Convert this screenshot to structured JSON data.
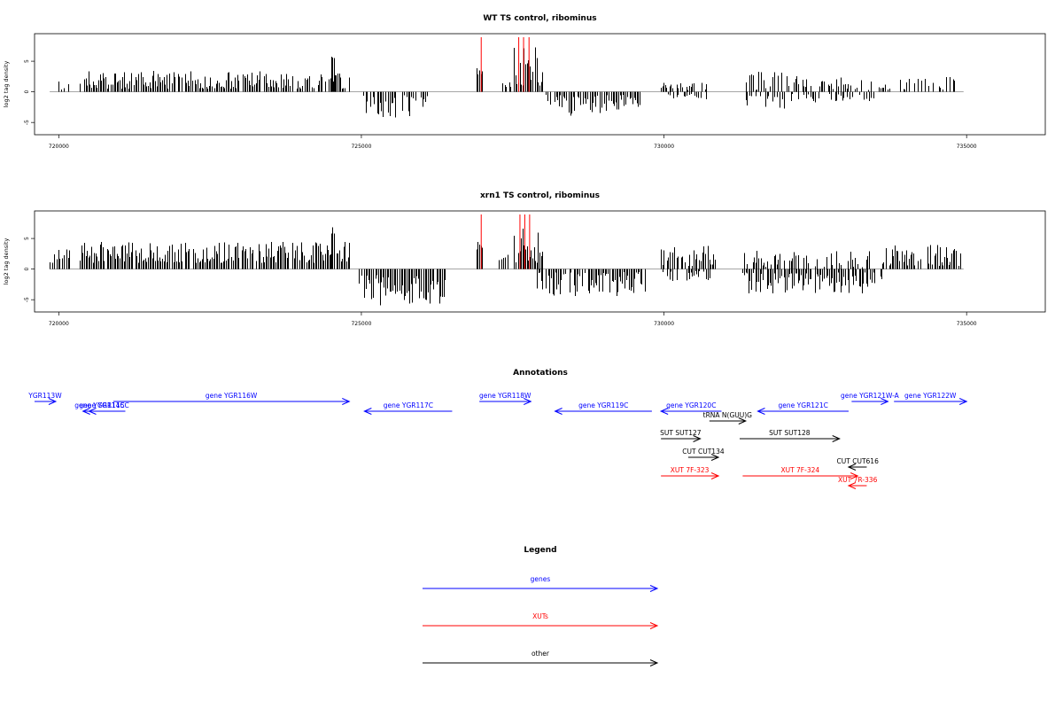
{
  "colors": {
    "gene": "#0000ff",
    "xut": "#ff0000",
    "other": "#000000",
    "highlight": "#ff0000",
    "bar": "#000000",
    "axis": "#000000",
    "baseline": "#888888"
  },
  "chart_data": [
    {
      "type": "bar",
      "title": "WT TS control, ribominus",
      "ylabel": "log2 tag density",
      "xlim": [
        719600,
        736300
      ],
      "ylim": [
        -7,
        9.5
      ],
      "xticks": [
        720000,
        725000,
        730000,
        735000
      ],
      "xtick_labels": [
        "720000",
        "725000",
        "730000",
        "735000"
      ],
      "yticks": [
        -5,
        0,
        5
      ],
      "ytick_labels": [
        "-5",
        "0",
        "5"
      ],
      "highlights": [
        726980,
        727600,
        727680,
        727770
      ],
      "segments": [
        {
          "x0": 719900,
          "x1": 720200,
          "sign": 1,
          "min": 0.3,
          "max": 2.0,
          "seed": 11,
          "gap": 0.4
        },
        {
          "x0": 720350,
          "x1": 723600,
          "sign": 1,
          "min": 0.5,
          "max": 3.5,
          "seed": 12,
          "gap": 0.15
        },
        {
          "x0": 723600,
          "x1": 724800,
          "sign": 1,
          "min": 0.5,
          "max": 3.0,
          "seed": 13,
          "gap": 0.2
        },
        {
          "x0": 724500,
          "x1": 724550,
          "sign": 1,
          "min": 5.5,
          "max": 6.0,
          "seed": 14,
          "gap": 0
        },
        {
          "x0": 725000,
          "x1": 726100,
          "sign": -1,
          "min": 0.5,
          "max": 4.2,
          "seed": 15,
          "gap": 0.25
        },
        {
          "x0": 726900,
          "x1": 727000,
          "sign": 1,
          "min": 2.5,
          "max": 4.5,
          "seed": 16,
          "gap": 0
        },
        {
          "x0": 727300,
          "x1": 727480,
          "sign": 1,
          "min": 0.5,
          "max": 3.0,
          "seed": 17,
          "gap": 0.3
        },
        {
          "x0": 727520,
          "x1": 728000,
          "sign": 1,
          "min": 1.0,
          "max": 8.0,
          "seed": 18,
          "gap": 0.05
        },
        {
          "x0": 728050,
          "x1": 729600,
          "sign": -1,
          "min": 0.5,
          "max": 4.0,
          "seed": 19,
          "gap": 0.2
        },
        {
          "x0": 729900,
          "x1": 730700,
          "sign": 1,
          "min": 0.3,
          "max": 1.5,
          "seed": 20,
          "gap": 0.5
        },
        {
          "x0": 729900,
          "x1": 730700,
          "sign": -1,
          "min": 0.3,
          "max": 1.3,
          "seed": 21,
          "gap": 0.5
        },
        {
          "x0": 731300,
          "x1": 732500,
          "sign": 1,
          "min": 0.3,
          "max": 3.5,
          "seed": 22,
          "gap": 0.55
        },
        {
          "x0": 731300,
          "x1": 732500,
          "sign": -1,
          "min": 0.3,
          "max": 2.8,
          "seed": 23,
          "gap": 0.5
        },
        {
          "x0": 732500,
          "x1": 734900,
          "sign": 1,
          "min": 0.3,
          "max": 2.5,
          "seed": 24,
          "gap": 0.55
        },
        {
          "x0": 732500,
          "x1": 733500,
          "sign": -1,
          "min": 0.3,
          "max": 1.8,
          "seed": 25,
          "gap": 0.6
        }
      ]
    },
    {
      "type": "bar",
      "title": "xrn1 TS control, ribominus",
      "ylabel": "log2 tag density",
      "xlim": [
        719600,
        736300
      ],
      "ylim": [
        -7,
        9.5
      ],
      "xticks": [
        720000,
        725000,
        730000,
        735000
      ],
      "xtick_labels": [
        "720000",
        "725000",
        "730000",
        "735000"
      ],
      "yticks": [
        -5,
        0,
        5
      ],
      "ytick_labels": [
        "-5",
        "0",
        "5"
      ],
      "highlights": [
        726980,
        727620,
        727700,
        727780
      ],
      "segments": [
        {
          "x0": 719850,
          "x1": 720200,
          "sign": 1,
          "min": 1.0,
          "max": 3.2,
          "seed": 31,
          "gap": 0.15
        },
        {
          "x0": 720350,
          "x1": 724800,
          "sign": 1,
          "min": 1.0,
          "max": 4.5,
          "seed": 32,
          "gap": 0.1
        },
        {
          "x0": 724500,
          "x1": 724560,
          "sign": 1,
          "min": 5.5,
          "max": 7.0,
          "seed": 33,
          "gap": 0
        },
        {
          "x0": 724950,
          "x1": 726400,
          "sign": -1,
          "min": 1.0,
          "max": 6.0,
          "seed": 34,
          "gap": 0.1
        },
        {
          "x0": 726900,
          "x1": 727000,
          "sign": 1,
          "min": 2.5,
          "max": 4.5,
          "seed": 35,
          "gap": 0
        },
        {
          "x0": 727250,
          "x1": 727480,
          "sign": 1,
          "min": 0.5,
          "max": 3.0,
          "seed": 36,
          "gap": 0.3
        },
        {
          "x0": 727520,
          "x1": 728000,
          "sign": 1,
          "min": 1.0,
          "max": 9.0,
          "seed": 37,
          "gap": 0.05
        },
        {
          "x0": 727900,
          "x1": 729700,
          "sign": -1,
          "min": 0.5,
          "max": 4.5,
          "seed": 38,
          "gap": 0.15
        },
        {
          "x0": 729950,
          "x1": 730850,
          "sign": 1,
          "min": 0.5,
          "max": 4.0,
          "seed": 39,
          "gap": 0.2
        },
        {
          "x0": 729950,
          "x1": 730850,
          "sign": -1,
          "min": 0.3,
          "max": 2.0,
          "seed": 40,
          "gap": 0.35
        },
        {
          "x0": 731300,
          "x1": 733500,
          "sign": 1,
          "min": 0.3,
          "max": 3.0,
          "seed": 41,
          "gap": 0.45
        },
        {
          "x0": 731300,
          "x1": 733600,
          "sign": -1,
          "min": 0.5,
          "max": 4.0,
          "seed": 42,
          "gap": 0.15
        },
        {
          "x0": 733600,
          "x1": 734900,
          "sign": 1,
          "min": 0.5,
          "max": 4.0,
          "seed": 43,
          "gap": 0.15
        }
      ]
    }
  ],
  "annotations": {
    "title": "Annotations",
    "xlim": [
      719600,
      736300
    ],
    "features": [
      {
        "label": "YGR113W",
        "x0": 719600,
        "x1": 719950,
        "row": 0,
        "dir": "right",
        "cls": "gene"
      },
      {
        "label": "gene YGR114C",
        "x0": 720500,
        "x1": 720850,
        "row": 1,
        "dir": "left",
        "cls": "gene"
      },
      {
        "label": "gene YGR115C",
        "x0": 720400,
        "x1": 721100,
        "row": 1,
        "dir": "left",
        "cls": "gene"
      },
      {
        "label": "gene YGR116W",
        "x0": 720900,
        "x1": 724800,
        "row": 0,
        "dir": "right",
        "cls": "gene"
      },
      {
        "label": "gene YGR117C",
        "x0": 725050,
        "x1": 726500,
        "row": 1,
        "dir": "left",
        "cls": "gene"
      },
      {
        "label": "gene YGR118W",
        "x0": 726950,
        "x1": 727800,
        "row": 0,
        "dir": "right",
        "cls": "gene"
      },
      {
        "label": "gene YGR119C",
        "x0": 728200,
        "x1": 729800,
        "row": 1,
        "dir": "left",
        "cls": "gene"
      },
      {
        "label": "gene YGR120C",
        "x0": 729950,
        "x1": 730950,
        "row": 1,
        "dir": "left",
        "cls": "gene"
      },
      {
        "label": "tRNA N(GUU)G",
        "x0": 730750,
        "x1": 731350,
        "row": 2,
        "dir": "right",
        "cls": "other"
      },
      {
        "label": "gene YGR121C",
        "x0": 731550,
        "x1": 733050,
        "row": 1,
        "dir": "left",
        "cls": "gene"
      },
      {
        "label": "gene YGR121W-A",
        "x0": 733100,
        "x1": 733700,
        "row": 0,
        "dir": "right",
        "cls": "gene"
      },
      {
        "label": "gene YGR122W",
        "x0": 733800,
        "x1": 735000,
        "row": 0,
        "dir": "right",
        "cls": "gene"
      },
      {
        "label": "SUT SUT127",
        "x0": 729950,
        "x1": 730600,
        "row": 3,
        "dir": "right",
        "cls": "other"
      },
      {
        "label": "SUT SUT128",
        "x0": 731250,
        "x1": 732900,
        "row": 3,
        "dir": "right",
        "cls": "other"
      },
      {
        "label": "CUT CUT134",
        "x0": 730400,
        "x1": 730900,
        "row": 4,
        "dir": "right",
        "cls": "other"
      },
      {
        "label": "CUT CUT616",
        "x0": 733050,
        "x1": 733350,
        "row": 5,
        "dir": "left",
        "cls": "other"
      },
      {
        "label": "XUT 7F-323",
        "x0": 729950,
        "x1": 730900,
        "row": 6,
        "dir": "right",
        "cls": "xut"
      },
      {
        "label": "XUT 7F-324",
        "x0": 731300,
        "x1": 733200,
        "row": 6,
        "dir": "right",
        "cls": "xut"
      },
      {
        "label": "XUT 7R-336",
        "x0": 733050,
        "x1": 733350,
        "row": 7,
        "dir": "left",
        "cls": "xut"
      }
    ]
  },
  "legend": {
    "title": "Legend",
    "items": [
      {
        "label": "genes",
        "cls": "gene"
      },
      {
        "label": "XUTs",
        "cls": "xut"
      },
      {
        "label": "other",
        "cls": "other"
      }
    ]
  }
}
